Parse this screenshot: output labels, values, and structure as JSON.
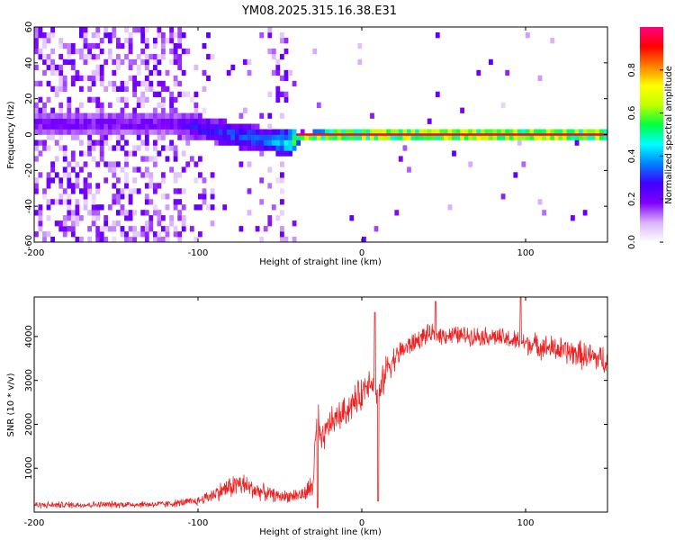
{
  "chart_data": [
    {
      "type": "heatmap",
      "title": "YM08.2025.315.16.38.E31",
      "xlabel": "Height of straight line (km)",
      "ylabel": "Frequency (Hz)",
      "xlim": [
        -200,
        150
      ],
      "ylim": [
        -60,
        60
      ],
      "x_ticks": [
        -200,
        -100,
        0,
        100
      ],
      "y_ticks": [
        60,
        40,
        20,
        0,
        -20,
        -40,
        -60
      ],
      "x_tick_labels": [
        "-200",
        "-100",
        "0",
        "100"
      ],
      "y_tick_labels": [
        "60",
        "40",
        "20",
        "0",
        "-20",
        "-40",
        "-60"
      ],
      "colorbar": {
        "label": "Normalized spectral amplitude",
        "range": [
          0,
          1
        ],
        "ticks": [
          0.0,
          0.2,
          0.4,
          0.6,
          0.8
        ],
        "tick_labels": [
          "0.0",
          "0.2",
          "0.4",
          "0.6",
          "0.8"
        ],
        "colormap": [
          "#ffffff",
          "#d9b3ff",
          "#8000ff",
          "#4000ff",
          "#0080ff",
          "#00ffff",
          "#00ff40",
          "#c0ff00",
          "#ffff00",
          "#ff8000",
          "#ff0000",
          "#ff0080"
        ]
      },
      "ridge": [
        {
          "x": -115,
          "f": 6,
          "amp": 0.22
        },
        {
          "x": -100,
          "f": 4,
          "amp": 0.3
        },
        {
          "x": -80,
          "f": 0,
          "amp": 0.35
        },
        {
          "x": -60,
          "f": -3,
          "amp": 0.38
        },
        {
          "x": -45,
          "f": -4,
          "amp": 0.55
        },
        {
          "x": -35,
          "f": -1,
          "amp": 0.75
        },
        {
          "x": -20,
          "f": 0,
          "amp": 0.85
        },
        {
          "x": 0,
          "f": 0,
          "amp": 0.95
        },
        {
          "x": 150,
          "f": 0,
          "amp": 0.97
        }
      ]
    },
    {
      "type": "line",
      "xlabel": "Height of straight line (km)",
      "ylabel": "SNR (10 * v/v)",
      "xlim": [
        -200,
        150
      ],
      "ylim": [
        0,
        4900
      ],
      "x_ticks": [
        -200,
        -100,
        0,
        100
      ],
      "y_ticks": [
        1000,
        2000,
        3000,
        4000
      ],
      "x_tick_labels": [
        "-200",
        "-100",
        "0",
        "100"
      ],
      "y_tick_labels": [
        "1000",
        "2000",
        "3000",
        "4000"
      ],
      "color": "#ee2222",
      "envelope": [
        {
          "x": -200,
          "y": 160,
          "noise": 90
        },
        {
          "x": -120,
          "y": 180,
          "noise": 90
        },
        {
          "x": -100,
          "y": 250,
          "noise": 120
        },
        {
          "x": -85,
          "y": 500,
          "noise": 250
        },
        {
          "x": -75,
          "y": 650,
          "noise": 350
        },
        {
          "x": -65,
          "y": 500,
          "noise": 250
        },
        {
          "x": -50,
          "y": 350,
          "noise": 150
        },
        {
          "x": -35,
          "y": 400,
          "noise": 200
        },
        {
          "x": -30,
          "y": 600,
          "noise": 400
        },
        {
          "x": -27,
          "y": 2300,
          "noise": 500
        },
        {
          "x": -25,
          "y": 1500,
          "noise": 400
        },
        {
          "x": -20,
          "y": 2000,
          "noise": 400
        },
        {
          "x": -10,
          "y": 2300,
          "noise": 400
        },
        {
          "x": 0,
          "y": 2700,
          "noise": 450
        },
        {
          "x": 5,
          "y": 3100,
          "noise": 450
        },
        {
          "x": 10,
          "y": 2500,
          "noise": 500
        },
        {
          "x": 15,
          "y": 3300,
          "noise": 400
        },
        {
          "x": 25,
          "y": 3700,
          "noise": 300
        },
        {
          "x": 40,
          "y": 4050,
          "noise": 250
        },
        {
          "x": 80,
          "y": 4000,
          "noise": 250
        },
        {
          "x": 120,
          "y": 3700,
          "noise": 350
        },
        {
          "x": 150,
          "y": 3450,
          "noise": 400
        }
      ],
      "features": [
        {
          "x": -27,
          "y": 100
        },
        {
          "x": 8,
          "y": 4550
        },
        {
          "x": 10,
          "y": 250
        },
        {
          "x": 45,
          "y": 4800
        },
        {
          "x": 97,
          "y": 4900
        }
      ]
    }
  ]
}
